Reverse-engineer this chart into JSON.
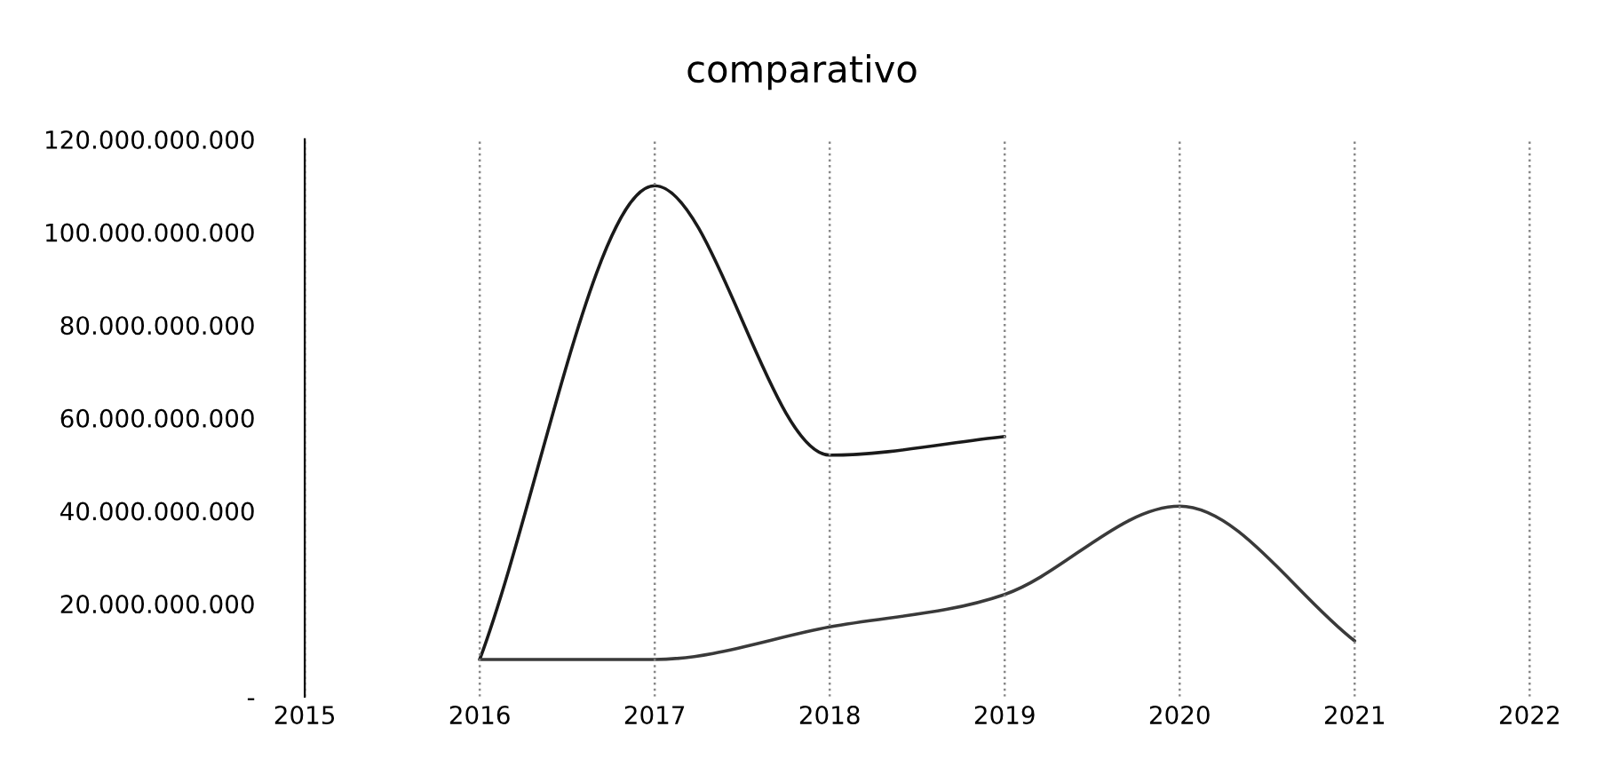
{
  "chart_data": {
    "type": "line",
    "title": "comparativo",
    "categories": [
      "2015",
      "2016",
      "2017",
      "2018",
      "2019",
      "2020",
      "2021",
      "2022"
    ],
    "series": [
      {
        "color": "#1a1a1a",
        "values": [
          null,
          8000000000,
          110000000000,
          52000000000,
          56000000000,
          null,
          null,
          null
        ]
      },
      {
        "color": "#3a3a3a",
        "values": [
          null,
          8000000000,
          8000000000,
          15000000000,
          22000000000,
          41000000000,
          12000000000,
          null
        ]
      }
    ],
    "ylim": [
      0,
      120000000000
    ],
    "yticks": [
      {
        "value": 0,
        "label": "-"
      },
      {
        "value": 20000000000,
        "label": "20.000.000.000"
      },
      {
        "value": 40000000000,
        "label": "40.000.000.000"
      },
      {
        "value": 60000000000,
        "label": "60.000.000.000"
      },
      {
        "value": 80000000000,
        "label": "80.000.000.000"
      },
      {
        "value": 100000000000,
        "label": "100.000.000.000"
      },
      {
        "value": 120000000000,
        "label": "120.000.000.000"
      }
    ],
    "grid": "x",
    "marker": "none",
    "line_style": "solid"
  }
}
